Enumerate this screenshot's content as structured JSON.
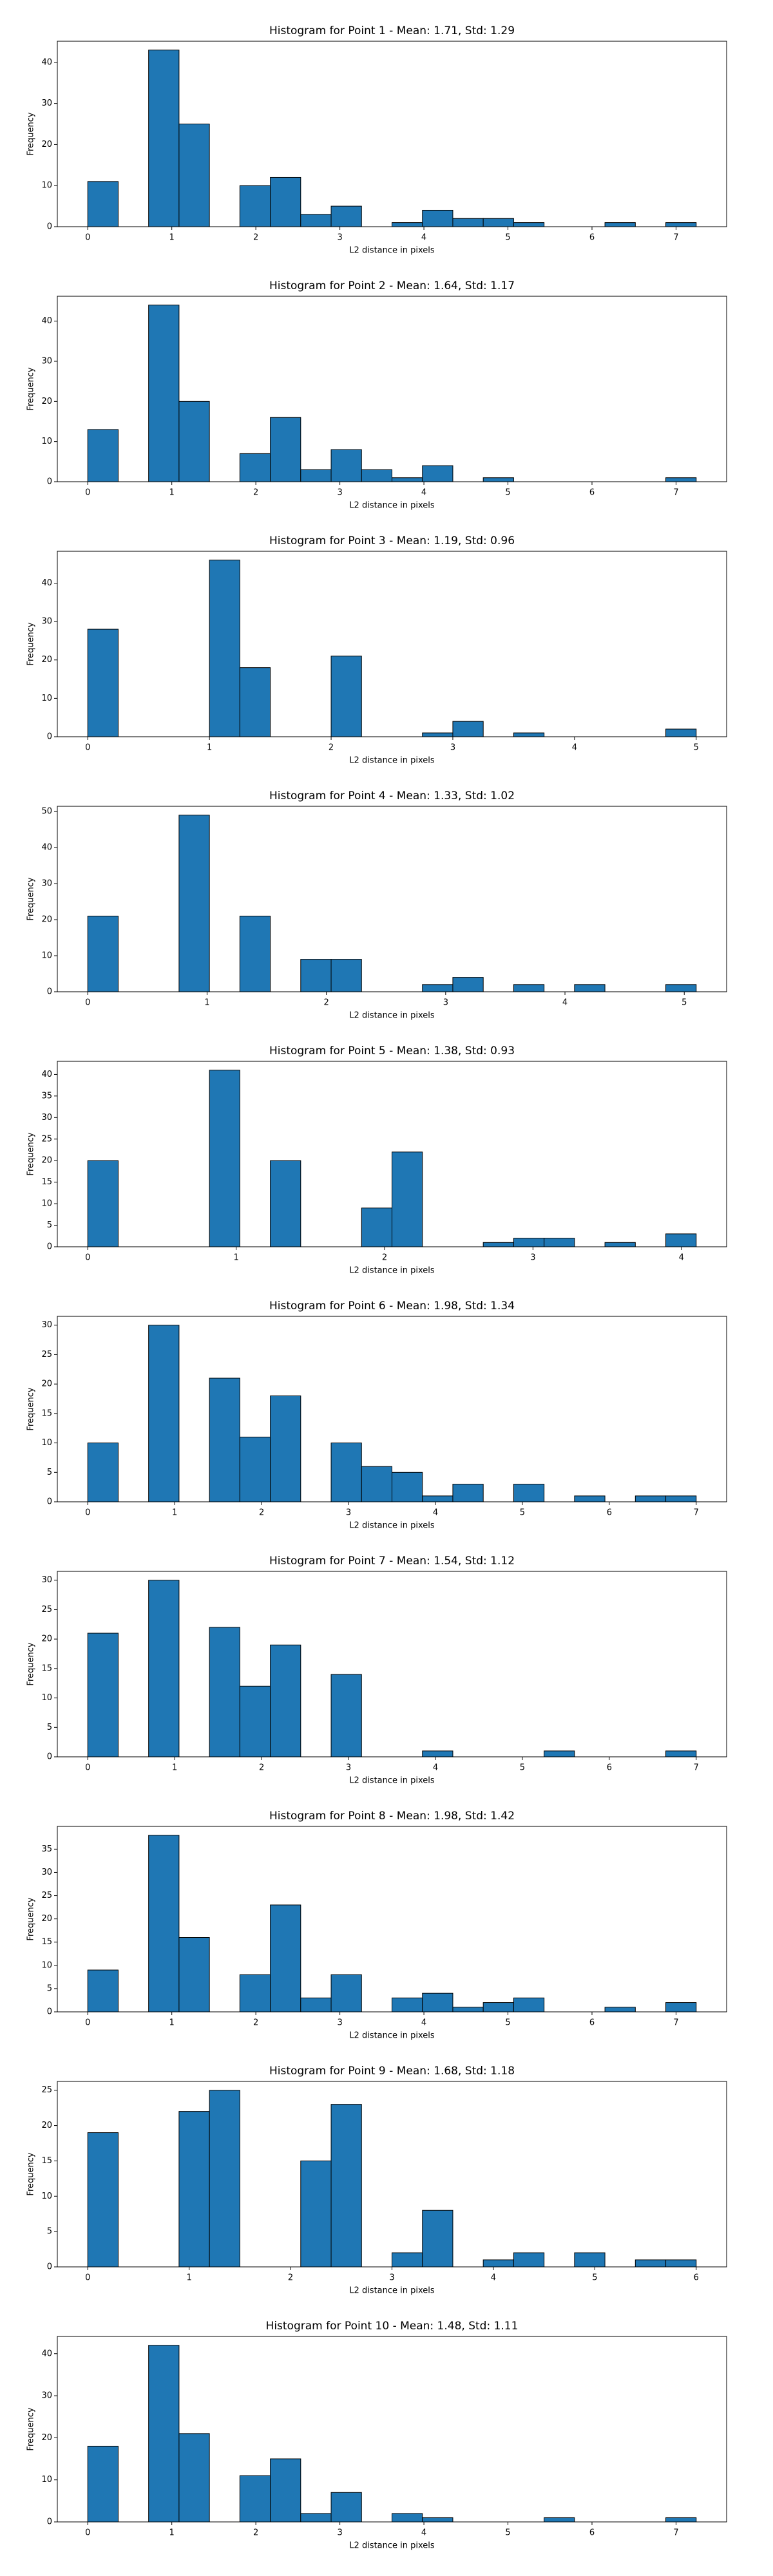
{
  "chart_data": [
    {
      "type": "histogram",
      "title": "Histogram for Point 1 - Mean: 1.71, Std: 1.29",
      "xlabel": "L2 distance in pixels",
      "ylabel": "Frequency",
      "color": "#1f77b4",
      "bins": [
        0,
        0.362,
        0.724,
        1.086,
        1.448,
        1.81,
        2.172,
        2.534,
        2.896,
        3.258,
        3.62,
        3.982,
        4.344,
        4.706,
        5.068,
        5.43,
        5.792,
        6.154,
        6.516,
        6.878,
        7.24
      ],
      "counts": [
        11,
        0,
        43,
        25,
        0,
        10,
        12,
        3,
        5,
        0,
        1,
        4,
        2,
        2,
        1,
        0,
        0,
        1,
        0,
        1
      ],
      "xlim": [
        -0.362,
        7.602
      ],
      "xticks": [
        0,
        1,
        2,
        3,
        4,
        5,
        6,
        7
      ],
      "ylim": [
        0,
        45.15
      ],
      "yticks": [
        0,
        10,
        20,
        30,
        40
      ]
    },
    {
      "type": "histogram",
      "title": "Histogram for Point 2 - Mean: 1.64, Std: 1.17",
      "xlabel": "L2 distance in pixels",
      "ylabel": "Frequency",
      "color": "#1f77b4",
      "bins": [
        0,
        0.362,
        0.724,
        1.086,
        1.448,
        1.81,
        2.172,
        2.534,
        2.896,
        3.258,
        3.62,
        3.982,
        4.344,
        4.706,
        5.068,
        5.43,
        5.792,
        6.154,
        6.516,
        6.878,
        7.24
      ],
      "counts": [
        13,
        0,
        44,
        20,
        0,
        7,
        16,
        3,
        8,
        3,
        1,
        4,
        0,
        1,
        0,
        0,
        0,
        0,
        0,
        1
      ],
      "xlim": [
        -0.362,
        7.602
      ],
      "xticks": [
        0,
        1,
        2,
        3,
        4,
        5,
        6,
        7
      ],
      "ylim": [
        0,
        46.2
      ],
      "yticks": [
        0,
        10,
        20,
        30,
        40
      ]
    },
    {
      "type": "histogram",
      "title": "Histogram for Point 3 - Mean: 1.19, Std: 0.96",
      "xlabel": "L2 distance in pixels",
      "ylabel": "Frequency",
      "color": "#1f77b4",
      "bins": [
        0,
        0.25,
        0.5,
        0.75,
        1,
        1.25,
        1.5,
        1.75,
        2,
        2.25,
        2.5,
        2.75,
        3,
        3.25,
        3.5,
        3.75,
        4,
        4.25,
        4.5,
        4.75,
        5
      ],
      "counts": [
        28,
        0,
        0,
        0,
        46,
        18,
        0,
        0,
        21,
        0,
        0,
        1,
        4,
        0,
        1,
        0,
        0,
        0,
        0,
        2
      ],
      "xlim": [
        -0.25,
        5.25
      ],
      "xticks": [
        0,
        1,
        2,
        3,
        4,
        5
      ],
      "ylim": [
        0,
        48.3
      ],
      "yticks": [
        0,
        10,
        20,
        30,
        40
      ]
    },
    {
      "type": "histogram",
      "title": "Histogram for Point 4 - Mean: 1.33, Std: 1.02",
      "xlabel": "L2 distance in pixels",
      "ylabel": "Frequency",
      "color": "#1f77b4",
      "bins": [
        0,
        0.255,
        0.51,
        0.765,
        1.02,
        1.275,
        1.53,
        1.785,
        2.04,
        2.295,
        2.55,
        2.805,
        3.06,
        3.315,
        3.57,
        3.825,
        4.08,
        4.335,
        4.59,
        4.845,
        5.1
      ],
      "counts": [
        21,
        0,
        0,
        49,
        0,
        21,
        0,
        9,
        9,
        0,
        0,
        2,
        4,
        0,
        2,
        0,
        2,
        0,
        0,
        2
      ],
      "xlim": [
        -0.255,
        5.355
      ],
      "xticks": [
        0,
        1,
        2,
        3,
        4,
        5
      ],
      "ylim": [
        0,
        51.45
      ],
      "yticks": [
        0,
        10,
        20,
        30,
        40,
        50
      ]
    },
    {
      "type": "histogram",
      "title": "Histogram for Point 5 - Mean: 1.38, Std: 0.93",
      "xlabel": "L2 distance in pixels",
      "ylabel": "Frequency",
      "color": "#1f77b4",
      "bins": [
        0,
        0.205,
        0.41,
        0.615,
        0.82,
        1.025,
        1.23,
        1.435,
        1.64,
        1.845,
        2.05,
        2.255,
        2.46,
        2.665,
        2.87,
        3.075,
        3.28,
        3.485,
        3.69,
        3.895,
        4.1
      ],
      "counts": [
        20,
        0,
        0,
        0,
        41,
        0,
        20,
        0,
        0,
        9,
        22,
        0,
        0,
        1,
        2,
        2,
        0,
        1,
        0,
        3
      ],
      "xlim": [
        -0.205,
        4.305
      ],
      "xticks": [
        0,
        1,
        2,
        3,
        4
      ],
      "ylim": [
        0,
        43.05
      ],
      "yticks": [
        0,
        5,
        10,
        15,
        20,
        25,
        30,
        35,
        40
      ]
    },
    {
      "type": "histogram",
      "title": "Histogram for Point 6 - Mean: 1.98, Std: 1.34",
      "xlabel": "L2 distance in pixels",
      "ylabel": "Frequency",
      "color": "#1f77b4",
      "bins": [
        0,
        0.35,
        0.7,
        1.05,
        1.4,
        1.75,
        2.1,
        2.45,
        2.8,
        3.15,
        3.5,
        3.85,
        4.2,
        4.55,
        4.9,
        5.25,
        5.6,
        5.95,
        6.3,
        6.65,
        7
      ],
      "counts": [
        10,
        0,
        30,
        0,
        21,
        11,
        18,
        0,
        10,
        6,
        5,
        1,
        3,
        0,
        3,
        0,
        1,
        0,
        1,
        1
      ],
      "xlim": [
        -0.35,
        7.35
      ],
      "xticks": [
        0,
        1,
        2,
        3,
        4,
        5,
        6,
        7
      ],
      "ylim": [
        0,
        31.5
      ],
      "yticks": [
        0,
        5,
        10,
        15,
        20,
        25,
        30
      ]
    },
    {
      "type": "histogram",
      "title": "Histogram for Point 7 - Mean: 1.54, Std: 1.12",
      "xlabel": "L2 distance in pixels",
      "ylabel": "Frequency",
      "color": "#1f77b4",
      "bins": [
        0,
        0.35,
        0.7,
        1.05,
        1.4,
        1.75,
        2.1,
        2.45,
        2.8,
        3.15,
        3.5,
        3.85,
        4.2,
        4.55,
        4.9,
        5.25,
        5.6,
        5.95,
        6.3,
        6.65,
        7
      ],
      "counts": [
        21,
        0,
        30,
        0,
        22,
        12,
        19,
        0,
        14,
        0,
        0,
        1,
        0,
        0,
        0,
        1,
        0,
        0,
        0,
        1
      ],
      "xlim": [
        -0.35,
        7.35
      ],
      "xticks": [
        0,
        1,
        2,
        3,
        4,
        5,
        6,
        7
      ],
      "ylim": [
        0,
        31.5
      ],
      "yticks": [
        0,
        5,
        10,
        15,
        20,
        25,
        30
      ]
    },
    {
      "type": "histogram",
      "title": "Histogram for Point 8 - Mean: 1.98, Std: 1.42",
      "xlabel": "L2 distance in pixels",
      "ylabel": "Frequency",
      "color": "#1f77b4",
      "bins": [
        0,
        0.362,
        0.724,
        1.086,
        1.448,
        1.81,
        2.172,
        2.534,
        2.896,
        3.258,
        3.62,
        3.982,
        4.344,
        4.706,
        5.068,
        5.43,
        5.792,
        6.154,
        6.516,
        6.878,
        7.24
      ],
      "counts": [
        9,
        0,
        38,
        16,
        0,
        8,
        23,
        3,
        8,
        0,
        3,
        4,
        1,
        2,
        3,
        0,
        0,
        1,
        0,
        2
      ],
      "xlim": [
        -0.362,
        7.602
      ],
      "xticks": [
        0,
        1,
        2,
        3,
        4,
        5,
        6,
        7
      ],
      "ylim": [
        0,
        39.9
      ],
      "yticks": [
        0,
        5,
        10,
        15,
        20,
        25,
        30,
        35
      ]
    },
    {
      "type": "histogram",
      "title": "Histogram for Point 9 - Mean: 1.68, Std: 1.18",
      "xlabel": "L2 distance in pixels",
      "ylabel": "Frequency",
      "color": "#1f77b4",
      "bins": [
        0,
        0.3,
        0.6,
        0.9,
        1.2,
        1.5,
        1.8,
        2.1,
        2.4,
        2.7,
        3,
        3.3,
        3.6,
        3.9,
        4.2,
        4.5,
        4.8,
        5.1,
        5.4,
        5.7,
        6
      ],
      "counts": [
        19,
        0,
        0,
        22,
        25,
        0,
        0,
        15,
        23,
        0,
        2,
        8,
        0,
        1,
        2,
        0,
        2,
        0,
        1,
        1
      ],
      "xlim": [
        -0.3,
        6.3
      ],
      "xticks": [
        0,
        1,
        2,
        3,
        4,
        5,
        6
      ],
      "ylim": [
        0,
        26.25
      ],
      "yticks": [
        0,
        5,
        10,
        15,
        20,
        25
      ]
    },
    {
      "type": "histogram",
      "title": "Histogram for Point 10 - Mean: 1.48, Std: 1.11",
      "xlabel": "L2 distance in pixels",
      "ylabel": "Frequency",
      "color": "#1f77b4",
      "bins": [
        0,
        0.362,
        0.724,
        1.086,
        1.448,
        1.81,
        2.172,
        2.534,
        2.896,
        3.258,
        3.62,
        3.982,
        4.344,
        4.706,
        5.068,
        5.43,
        5.792,
        6.154,
        6.516,
        6.878,
        7.24
      ],
      "counts": [
        18,
        0,
        42,
        21,
        0,
        11,
        15,
        2,
        7,
        0,
        2,
        1,
        0,
        0,
        0,
        1,
        0,
        0,
        0,
        1
      ],
      "xlim": [
        -0.362,
        7.602
      ],
      "xticks": [
        0,
        1,
        2,
        3,
        4,
        5,
        6,
        7
      ],
      "ylim": [
        0,
        44.1
      ],
      "yticks": [
        0,
        10,
        20,
        30,
        40
      ]
    }
  ]
}
